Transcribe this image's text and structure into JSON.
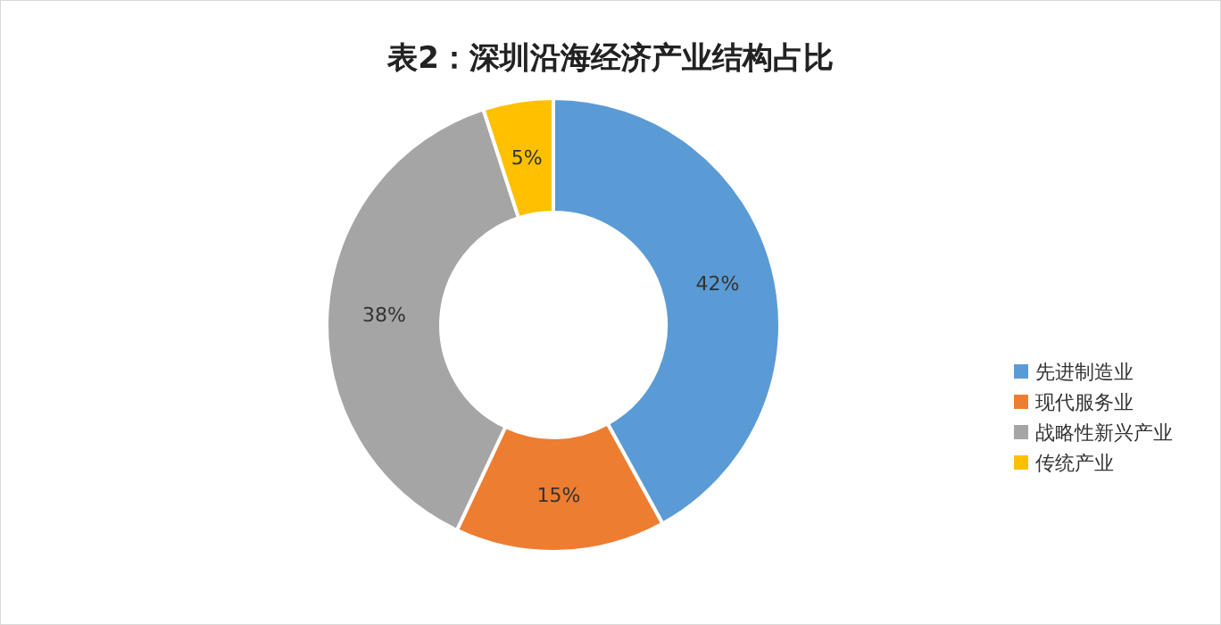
{
  "chart_data": {
    "type": "donut",
    "title": "表2：深圳沿海经济产业结构占比",
    "categories": [
      "先进制造业",
      "现代服务业",
      "战略性新兴产业",
      "传统产业"
    ],
    "values": [
      42,
      15,
      38,
      5
    ],
    "colors": [
      "#5b9bd5",
      "#ed7d31",
      "#a5a5a5",
      "#ffc000"
    ],
    "value_labels": [
      "42%",
      "15%",
      "38%",
      "5%"
    ],
    "legend": "right"
  }
}
